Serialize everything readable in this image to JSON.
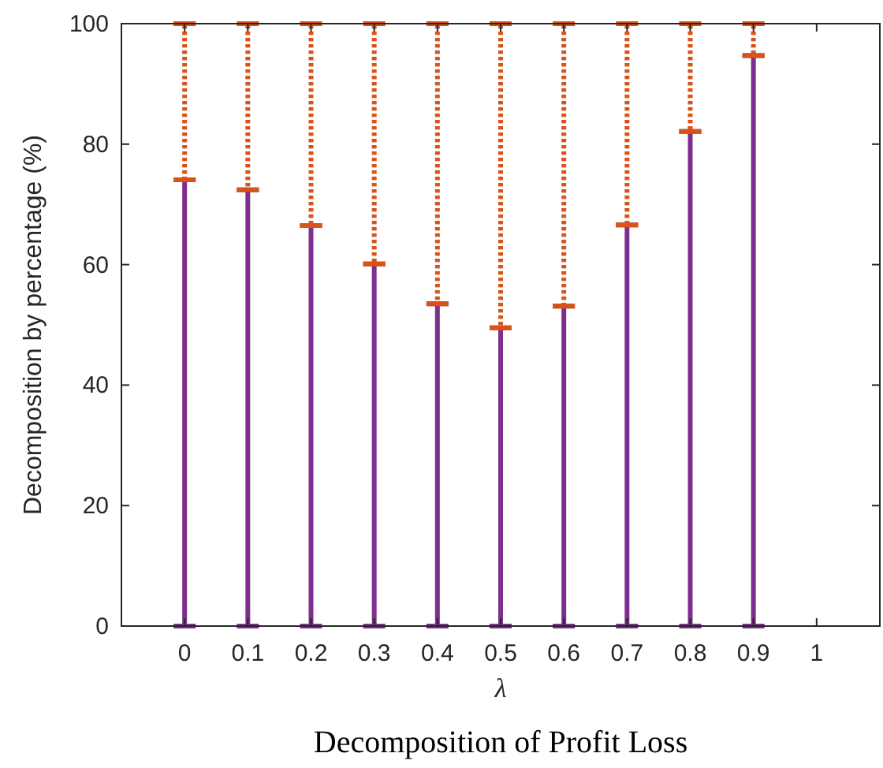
{
  "chart_data": {
    "type": "bar",
    "stacked": true,
    "title": "Decomposition of Profit Loss",
    "xlabel": "λ",
    "ylabel": "Decomposition by percentage (%)",
    "x": [
      0,
      0.1,
      0.2,
      0.3,
      0.4,
      0.5,
      0.6,
      0.7,
      0.8,
      0.9
    ],
    "series": [
      {
        "color": "#7e2f8e",
        "line_style": "solid",
        "values": [
          74.1,
          72.4,
          66.5,
          60.1,
          53.5,
          49.5,
          53.1,
          66.6,
          82.1,
          94.7
        ]
      },
      {
        "color": "#d95319",
        "line_style": "dotted",
        "values": [
          25.9,
          27.6,
          33.5,
          39.9,
          46.5,
          50.5,
          46.9,
          33.4,
          17.9,
          5.3
        ]
      }
    ],
    "xlim": [
      -0.1,
      1.1
    ],
    "xticks": [
      0,
      0.1,
      0.2,
      0.3,
      0.4,
      0.5,
      0.6,
      0.7,
      0.8,
      0.9,
      1
    ],
    "ylim": [
      0,
      100
    ],
    "yticks": [
      0,
      20,
      40,
      60,
      80,
      100
    ],
    "grid": false
  }
}
